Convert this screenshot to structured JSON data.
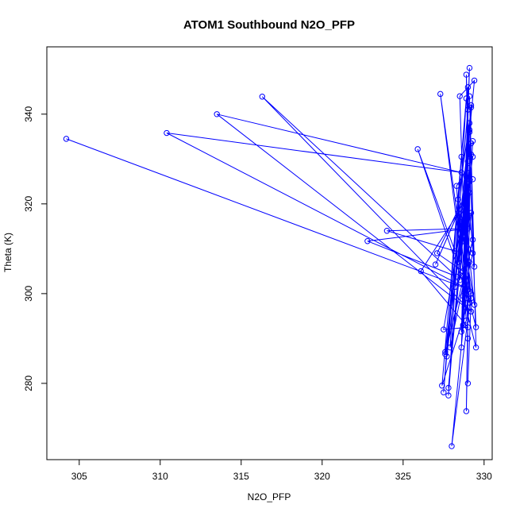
{
  "chart_data": {
    "type": "scatter",
    "title": "ATOM1 Southbound N2O_PFP",
    "xlabel": "N2O_PFP",
    "ylabel": "Theta (K)",
    "xlim": [
      303,
      330.5
    ],
    "ylim": [
      263,
      355
    ],
    "x_ticks": [
      305,
      310,
      315,
      320,
      325,
      330
    ],
    "y_ticks": [
      280,
      300,
      320,
      340
    ],
    "x_tick_labels": [
      "305",
      "310",
      "315",
      "320",
      "325",
      "330"
    ],
    "y_tick_labels": [
      "280",
      "300",
      "320",
      "340"
    ],
    "grid": false,
    "legend": "none",
    "color": "#0000ff",
    "series": [
      {
        "x": [
          304.2,
          329.0,
          310.4,
          328.6,
          313.5,
          329.2,
          316.3,
          328.3,
          322.8,
          329.0,
          324.0,
          328.2,
          325.9,
          329.1,
          327.3,
          328.7,
          327.1,
          329.3,
          327.0,
          328.4,
          326.1,
          329.0,
          327.5,
          328.9,
          327.6,
          329.2,
          327.8,
          328.8,
          327.7,
          329.0,
          327.5,
          328.6,
          327.9,
          329.3,
          327.6,
          329.1,
          327.8,
          328.9,
          327.4,
          329.2,
          328.0,
          329.1,
          328.2,
          329.4,
          328.5,
          328.9,
          328.4,
          329.1,
          328.6,
          329.3,
          328.7,
          329.0,
          328.8,
          329.2,
          328.5,
          329.0,
          328.3,
          328.9,
          328.6,
          329.1,
          328.7,
          329.4,
          328.8,
          329.0,
          328.9,
          329.2,
          328.5,
          329.3,
          328.7,
          329.5,
          329.1,
          329.4,
          328.9,
          329.1,
          328.6,
          329.2,
          328.8,
          329.0,
          328.4,
          329.3,
          328.6,
          329.1,
          328.7,
          329.5,
          328.9,
          329.0,
          329.2,
          328.8,
          329.1,
          328.7,
          329.2,
          329.0
        ],
        "y": [
          334.5,
          301.0,
          335.8,
          327.0,
          340.0,
          296.0,
          343.9,
          303.8,
          311.7,
          314.5,
          314.0,
          309.5,
          332.2,
          298.0,
          344.5,
          305.0,
          309.0,
          325.5,
          306.5,
          318.0,
          305.0,
          292.5,
          292.0,
          322.0,
          287.0,
          331.0,
          279.0,
          320.0,
          286.0,
          341.0,
          278.0,
          330.5,
          288.0,
          312.0,
          286.5,
          336.0,
          277.3,
          343.5,
          279.5,
          300.0,
          266.0,
          307.0,
          301.5,
          347.5,
          344.0,
          299.0,
          321.0,
          338.0,
          288.0,
          334.0,
          293.0,
          346.0,
          297.0,
          341.5,
          303.0,
          328.0,
          324.0,
          294.0,
          291.5,
          350.3,
          313.0,
          297.5,
          318.5,
          290.0,
          273.8,
          342.0,
          315.0,
          309.0,
          299.5,
          288.0,
          344.0,
          306.0,
          326.0,
          300.5,
          316.0,
          318.0,
          302.0,
          324.5,
          307.0,
          330.5,
          311.5,
          336.5,
          304.0,
          292.5,
          348.8,
          329.5,
          333.5,
          303.5,
          322.5,
          317.5,
          299.0,
          280.0
        ]
      }
    ]
  }
}
